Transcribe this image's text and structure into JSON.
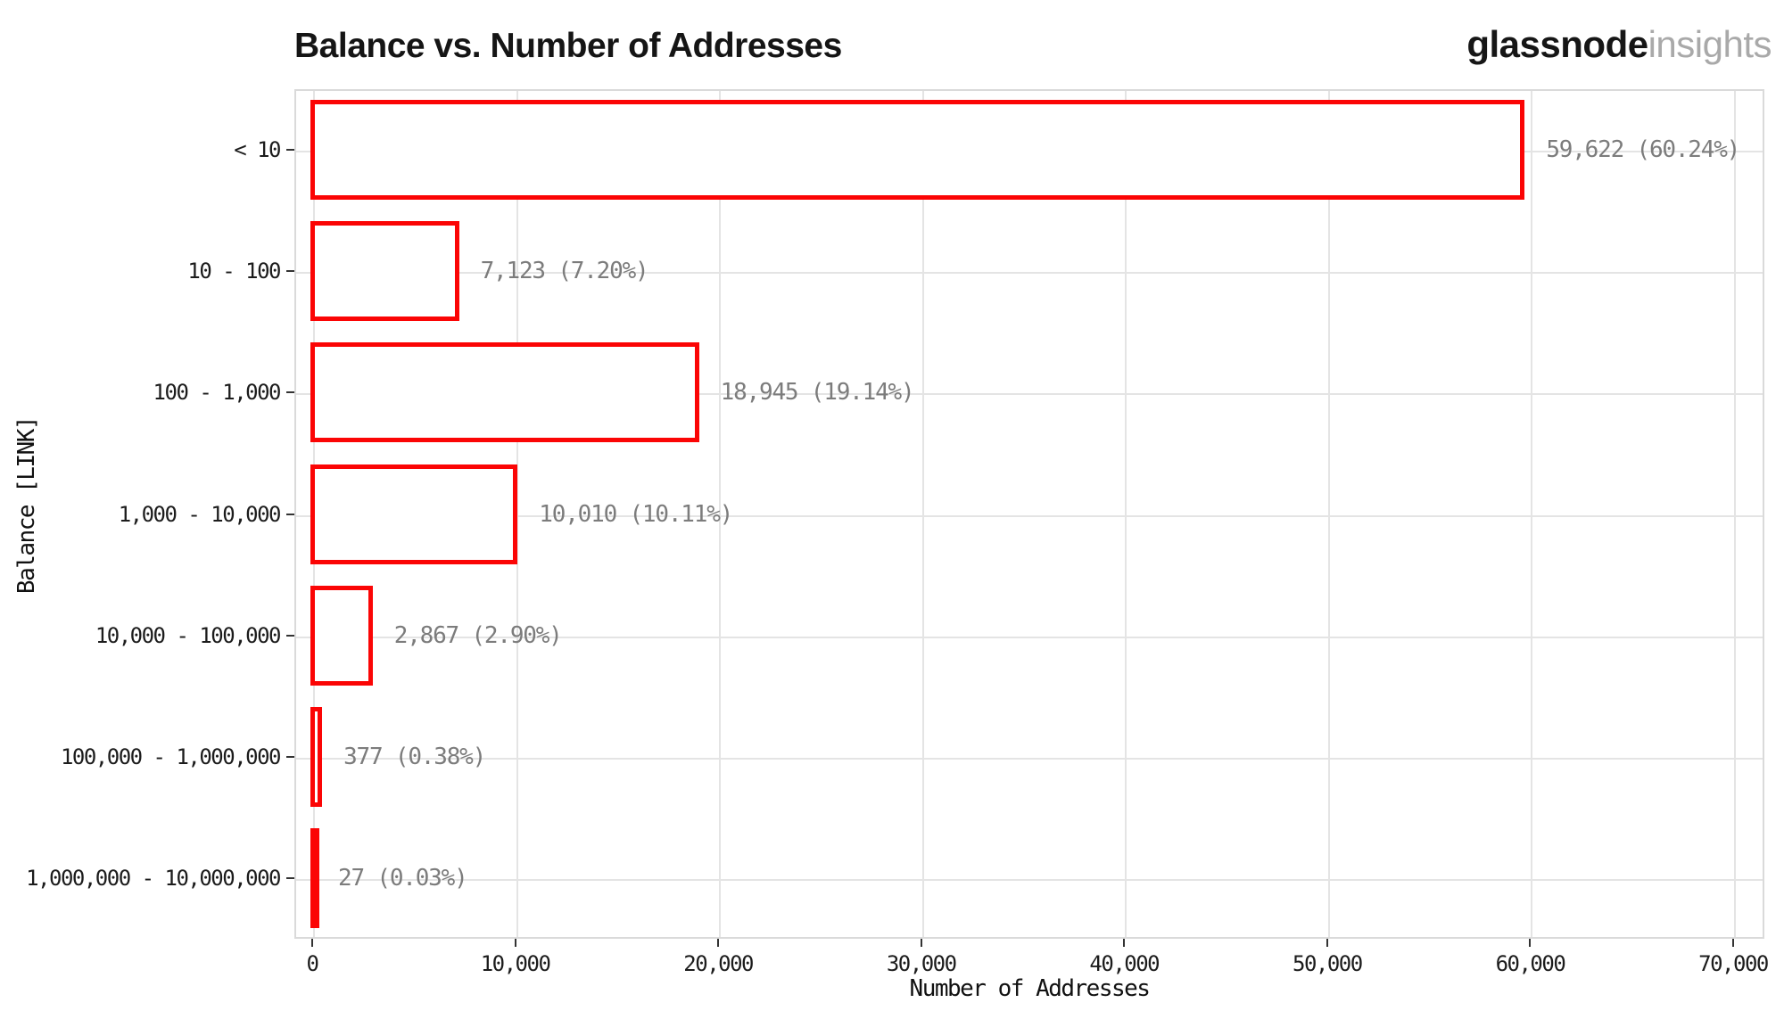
{
  "header": {
    "title": "Balance vs. Number of Addresses",
    "brand": {
      "primary": "glassnode",
      "secondary": "insights"
    }
  },
  "chart_data": {
    "type": "bar",
    "orientation": "horizontal",
    "title": "Balance vs. Number of Addresses",
    "xlabel": "Number of Addresses",
    "ylabel": "Balance [LINK]",
    "categories": [
      "< 10",
      "10 - 100",
      "100 - 1,000",
      "1,000 - 10,000",
      "10,000 - 100,000",
      "100,000 - 1,000,000",
      "1,000,000 - 10,000,000"
    ],
    "values": [
      59622,
      7123,
      18945,
      10010,
      2867,
      377,
      27
    ],
    "percentages": [
      60.24,
      7.2,
      19.14,
      10.11,
      2.9,
      0.38,
      0.03
    ],
    "bar_labels": [
      "59,622 (60.24%)",
      "7,123 (7.20%)",
      "18,945 (19.14%)",
      "10,010 (10.11%)",
      "2,867 (2.90%)",
      "377 (0.38%)",
      "27 (0.03%)"
    ],
    "xlim": [
      0,
      70000
    ],
    "xticks": [
      {
        "value": 0,
        "label": "0"
      },
      {
        "value": 10000,
        "label": "10,000"
      },
      {
        "value": 20000,
        "label": "20,000"
      },
      {
        "value": 30000,
        "label": "30,000"
      },
      {
        "value": 40000,
        "label": "40,000"
      },
      {
        "value": 50000,
        "label": "50,000"
      },
      {
        "value": 60000,
        "label": "60,000"
      },
      {
        "value": 70000,
        "label": "70,000"
      }
    ],
    "grid": true,
    "legend": false,
    "style": {
      "bar_stroke": "#fb0505",
      "bar_fill": "#ffffff",
      "grid_color": "#e4e4e4",
      "panel_border": "#dadada",
      "value_label_color": "#7c7c7c",
      "tick_color": "#333333"
    }
  }
}
